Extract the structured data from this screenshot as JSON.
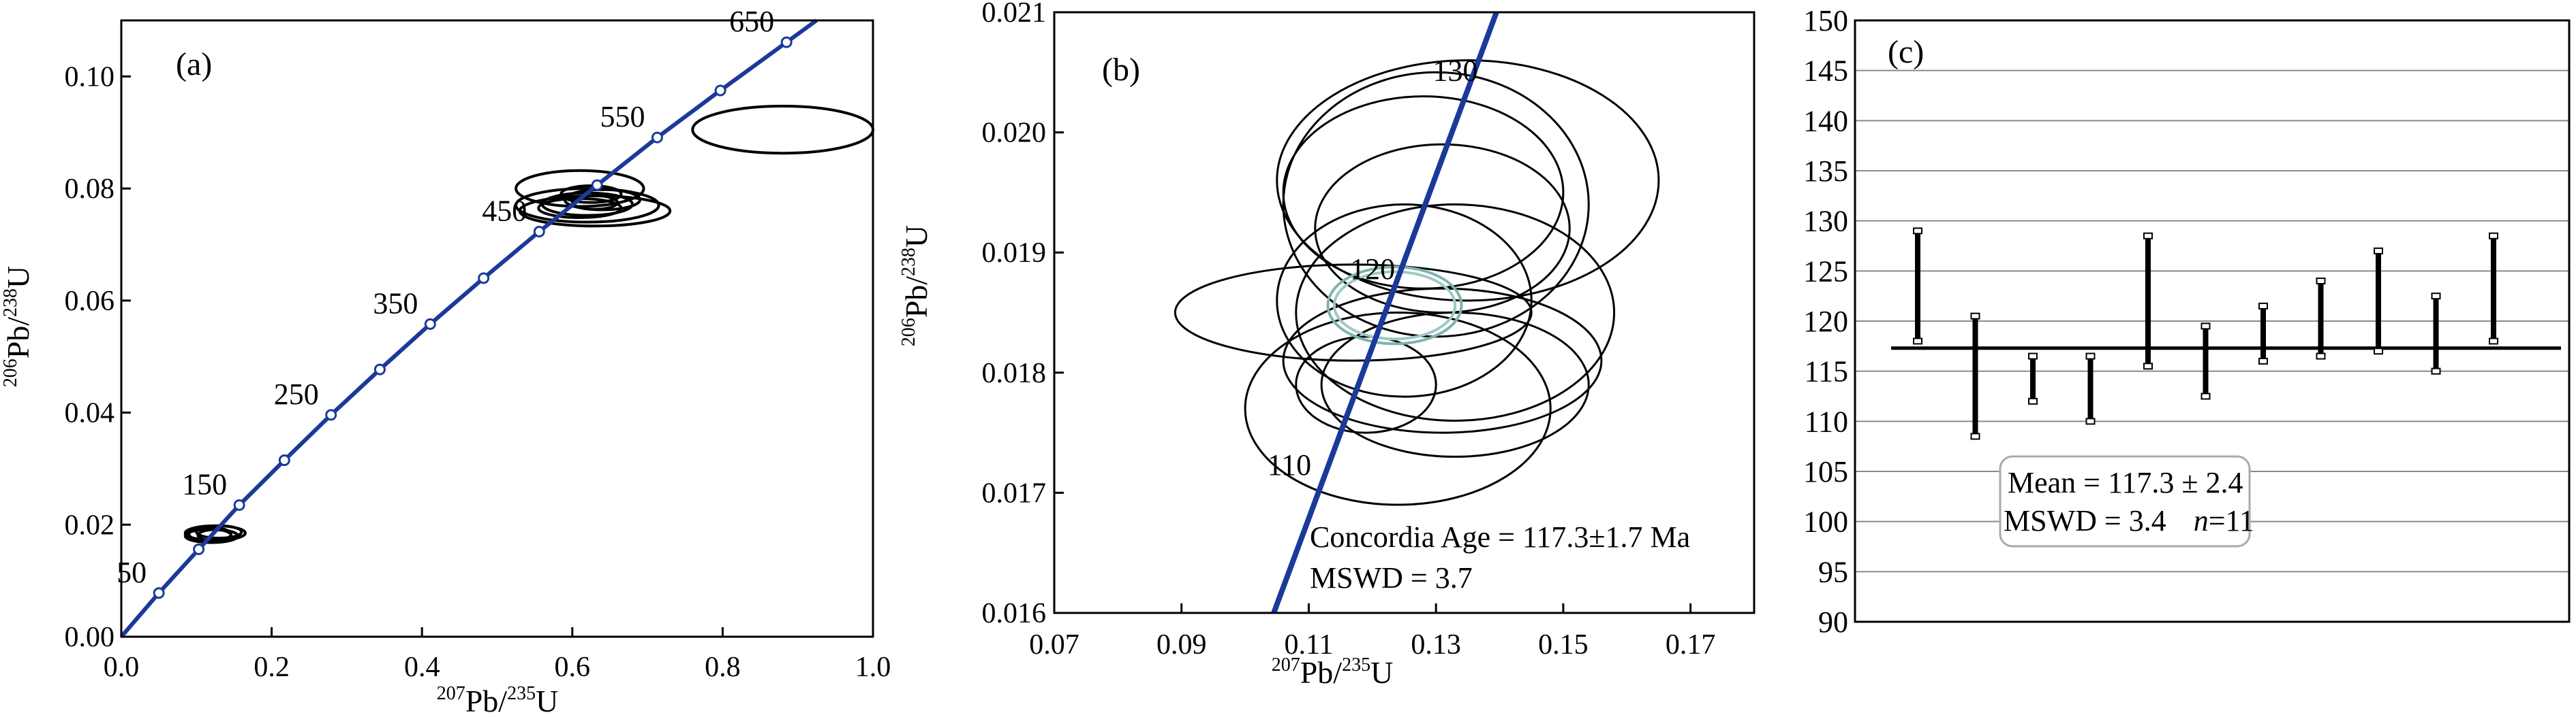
{
  "chart_data": [
    {
      "id": "a",
      "type": "scatter",
      "panel_label": "(a)",
      "xlabel": {
        "pre_sup": "207",
        "main": "Pb/",
        "post_sup": "235",
        "tail": "U"
      },
      "ylabel": {
        "pre_sup": "206",
        "main": "Pb/",
        "post_sup": "238",
        "tail": "U"
      },
      "xlim": [
        0.0,
        1.0
      ],
      "ylim": [
        0.0,
        0.11
      ],
      "xticks": [
        "0.0",
        "0.2",
        "0.4",
        "0.6",
        "0.8",
        "1.0"
      ],
      "yticks": [
        "0.00",
        "0.02",
        "0.04",
        "0.06",
        "0.08",
        "0.10"
      ],
      "concordia_color": "#1a3a9a",
      "concordia_markers": [
        {
          "age": 50,
          "x": 0.05,
          "y": 0.0078,
          "label": "50"
        },
        {
          "age": 100,
          "x": 0.103,
          "y": 0.0156,
          "label": ""
        },
        {
          "age": 150,
          "x": 0.157,
          "y": 0.0235,
          "label": "150"
        },
        {
          "age": 200,
          "x": 0.217,
          "y": 0.0315,
          "label": ""
        },
        {
          "age": 250,
          "x": 0.279,
          "y": 0.0396,
          "label": "250"
        },
        {
          "age": 300,
          "x": 0.344,
          "y": 0.0477,
          "label": ""
        },
        {
          "age": 350,
          "x": 0.411,
          "y": 0.0558,
          "label": "350"
        },
        {
          "age": 400,
          "x": 0.482,
          "y": 0.064,
          "label": ""
        },
        {
          "age": 450,
          "x": 0.556,
          "y": 0.0723,
          "label": "450"
        },
        {
          "age": 500,
          "x": 0.633,
          "y": 0.0806,
          "label": ""
        },
        {
          "age": 550,
          "x": 0.713,
          "y": 0.0891,
          "label": "550"
        },
        {
          "age": 600,
          "x": 0.797,
          "y": 0.0975,
          "label": ""
        },
        {
          "age": 650,
          "x": 0.885,
          "y": 0.1061,
          "label": "650"
        }
      ],
      "ellipses": [
        {
          "cx": 0.88,
          "cy": 0.0905,
          "rx": 0.12,
          "ry": 0.0042
        },
        {
          "cx": 0.61,
          "cy": 0.08,
          "rx": 0.085,
          "ry": 0.0032
        },
        {
          "cx": 0.62,
          "cy": 0.077,
          "rx": 0.095,
          "ry": 0.003
        },
        {
          "cx": 0.63,
          "cy": 0.076,
          "rx": 0.1,
          "ry": 0.0027
        },
        {
          "cx": 0.62,
          "cy": 0.0772,
          "rx": 0.06,
          "ry": 0.002
        },
        {
          "cx": 0.64,
          "cy": 0.078,
          "rx": 0.05,
          "ry": 0.0018
        },
        {
          "cx": 0.625,
          "cy": 0.079,
          "rx": 0.04,
          "ry": 0.0015
        },
        {
          "cx": 0.61,
          "cy": 0.0765,
          "rx": 0.055,
          "ry": 0.0017
        },
        {
          "cx": 0.63,
          "cy": 0.0775,
          "rx": 0.03,
          "ry": 0.0012
        },
        {
          "cx": 0.125,
          "cy": 0.0185,
          "rx": 0.04,
          "ry": 0.0013
        },
        {
          "cx": 0.12,
          "cy": 0.018,
          "rx": 0.035,
          "ry": 0.0012
        },
        {
          "cx": 0.13,
          "cy": 0.0187,
          "rx": 0.03,
          "ry": 0.0011
        },
        {
          "cx": 0.118,
          "cy": 0.0183,
          "rx": 0.028,
          "ry": 0.0012
        },
        {
          "cx": 0.124,
          "cy": 0.0181,
          "rx": 0.022,
          "ry": 0.001
        }
      ]
    },
    {
      "id": "b",
      "type": "scatter",
      "panel_label": "(b)",
      "xlabel": {
        "pre_sup": "207",
        "main": "Pb/",
        "post_sup": "235",
        "tail": "U"
      },
      "ylabel": {
        "pre_sup": "206",
        "main": "Pb/",
        "post_sup": "238",
        "tail": "U"
      },
      "xlim": [
        0.07,
        0.18
      ],
      "ylim": [
        0.016,
        0.021
      ],
      "xticks": [
        "0.07",
        "0.09",
        "0.11",
        "0.13",
        "0.15",
        "0.17"
      ],
      "yticks": [
        "0.016",
        "0.017",
        "0.018",
        "0.019",
        "0.020",
        "0.021"
      ],
      "concordia_color": "#1a3a9a",
      "concordia_line": [
        [
          0.1045,
          0.016
        ],
        [
          0.1395,
          0.021
        ]
      ],
      "age_labels": [
        {
          "text": "130",
          "x": 0.1295,
          "y": 0.02043
        },
        {
          "text": "120",
          "x": 0.1165,
          "y": 0.01878
        },
        {
          "text": "110",
          "x": 0.1035,
          "y": 0.01715
        }
      ],
      "ellipses": [
        {
          "cx": 0.13,
          "cy": 0.0194,
          "rx": 0.024,
          "ry": 0.0011,
          "stroke": "#000000"
        },
        {
          "cx": 0.135,
          "cy": 0.0196,
          "rx": 0.03,
          "ry": 0.001,
          "stroke": "#000000"
        },
        {
          "cx": 0.128,
          "cy": 0.0195,
          "rx": 0.022,
          "ry": 0.0008,
          "stroke": "#000000"
        },
        {
          "cx": 0.131,
          "cy": 0.0192,
          "rx": 0.02,
          "ry": 0.0007,
          "stroke": "#000000"
        },
        {
          "cx": 0.125,
          "cy": 0.0186,
          "rx": 0.02,
          "ry": 0.0008,
          "stroke": "#000000"
        },
        {
          "cx": 0.133,
          "cy": 0.0185,
          "rx": 0.025,
          "ry": 0.0009,
          "stroke": "#000000"
        },
        {
          "cx": 0.117,
          "cy": 0.0185,
          "rx": 0.028,
          "ry": 0.0004,
          "stroke": "#000000"
        },
        {
          "cx": 0.131,
          "cy": 0.0181,
          "rx": 0.025,
          "ry": 0.0006,
          "stroke": "#000000"
        },
        {
          "cx": 0.133,
          "cy": 0.0179,
          "rx": 0.021,
          "ry": 0.0006,
          "stroke": "#000000"
        },
        {
          "cx": 0.124,
          "cy": 0.0177,
          "rx": 0.024,
          "ry": 0.0008,
          "stroke": "#000000"
        },
        {
          "cx": 0.119,
          "cy": 0.0179,
          "rx": 0.011,
          "ry": 0.0004,
          "stroke": "#000000"
        },
        {
          "cx": 0.1235,
          "cy": 0.01856,
          "rx": 0.0105,
          "ry": 0.00032,
          "stroke": "#7fb3ae"
        },
        {
          "cx": 0.1235,
          "cy": 0.01856,
          "rx": 0.0095,
          "ry": 0.00028,
          "stroke": "#9ec8c3"
        }
      ],
      "annotation_line1": "Concordia Age = 117.3±1.7 Ma",
      "annotation_line2": "MSWD = 3.7"
    },
    {
      "id": "c",
      "type": "errorbar",
      "panel_label": "(c)",
      "ylim": [
        90,
        150
      ],
      "yticks": [
        "90",
        "95",
        "100",
        "105",
        "110",
        "115",
        "120",
        "125",
        "130",
        "135",
        "140",
        "145",
        "150"
      ],
      "grid": true,
      "mean": 117.3,
      "bars": [
        {
          "low": 118.0,
          "high": 129.0
        },
        {
          "low": 108.5,
          "high": 120.5
        },
        {
          "low": 112.0,
          "high": 116.5
        },
        {
          "low": 110.0,
          "high": 116.5
        },
        {
          "low": 115.5,
          "high": 128.5
        },
        {
          "low": 112.5,
          "high": 119.5
        },
        {
          "low": 116.0,
          "high": 121.5
        },
        {
          "low": 116.5,
          "high": 124.0
        },
        {
          "low": 117.0,
          "high": 127.0
        },
        {
          "low": 115.0,
          "high": 122.5
        },
        {
          "low": 118.0,
          "high": 128.5
        }
      ],
      "stats_line1": "Mean = 117.3 ± 2.4",
      "stats_line2_a": "MSWD = 3.4",
      "stats_n_symbol": "n",
      "stats_n_value": "=11"
    }
  ]
}
